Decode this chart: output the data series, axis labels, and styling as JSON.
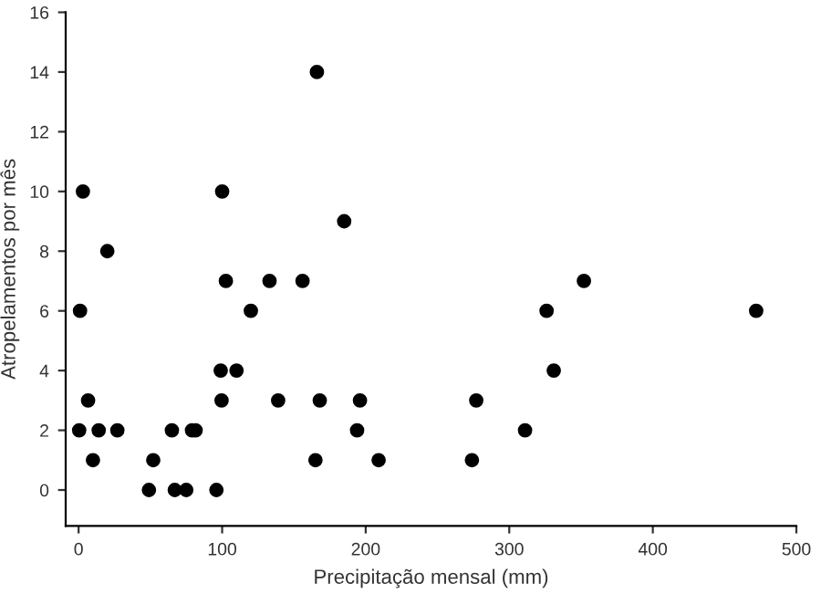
{
  "chart_data": {
    "type": "scatter",
    "xlabel": "Precipitação mensal (mm)",
    "ylabel": "Atropelamentos por mês",
    "x": [
      3,
      1,
      6.6,
      0.4,
      10,
      14,
      20,
      27,
      49,
      52,
      65,
      67,
      75,
      79,
      81.5,
      96,
      99.6,
      99,
      100,
      102.6,
      120,
      110,
      133,
      139,
      156,
      165,
      166,
      168,
      185,
      194,
      196,
      209,
      274,
      277,
      311,
      326,
      331,
      352,
      472
    ],
    "values": [
      10,
      6,
      3,
      2,
      1,
      2,
      8,
      2,
      0,
      1,
      2,
      0,
      0,
      2,
      2,
      0,
      3,
      4,
      10,
      7,
      6,
      4,
      7,
      3,
      7,
      1,
      14,
      3,
      9,
      2,
      3,
      1,
      1,
      3,
      2,
      6,
      4,
      7,
      6
    ],
    "color": "#000000",
    "marker": "circle",
    "xlim": [
      -9,
      500
    ],
    "ylim": [
      -1.2,
      16
    ],
    "xticks": [
      0,
      100,
      200,
      300,
      400,
      500
    ],
    "yticks": [
      0,
      2,
      4,
      6,
      8,
      10,
      12,
      14,
      16
    ],
    "grid": false,
    "legend": false
  }
}
